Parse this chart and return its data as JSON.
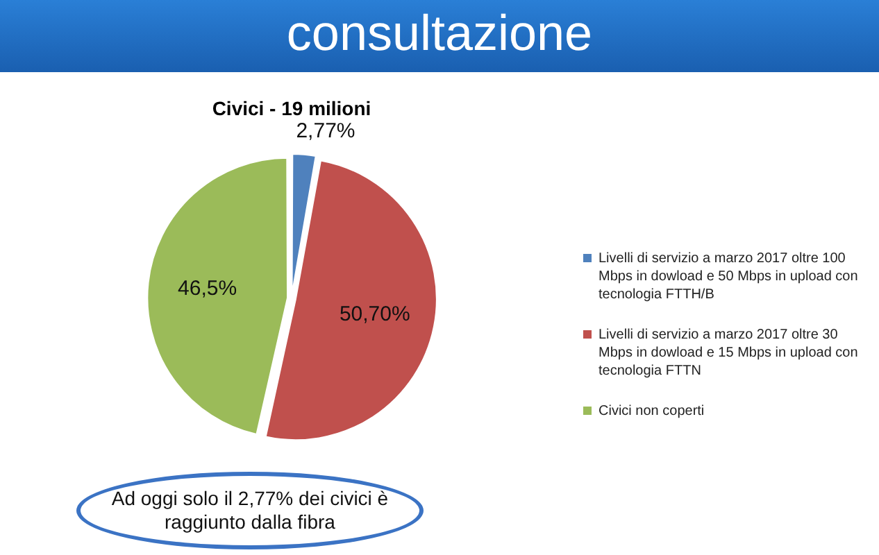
{
  "chart_data": {
    "type": "pie",
    "title": "consultazione",
    "subtitle": "Civici - 19 milioni",
    "categories": [
      "Livelli di servizio a marzo 2017 oltre 100 Mbps in dowload e 50 Mbps in upload con tecnologia FTTH/B",
      "Livelli di servizio a marzo 2017 oltre 30 Mbps in dowload e 15 Mbps in upload con tecnologia FTTN",
      "Civici non coperti"
    ],
    "values": [
      2.77,
      50.7,
      46.5
    ],
    "colors": [
      "#4f81bd",
      "#c0504d",
      "#9bbb59"
    ],
    "value_labels": [
      "2,77%",
      "50,70%",
      "46,5%"
    ],
    "legend": "right",
    "annotations": [
      "Ad oggi solo il 2,77% dei civici è raggiunto dalla fibra"
    ]
  }
}
